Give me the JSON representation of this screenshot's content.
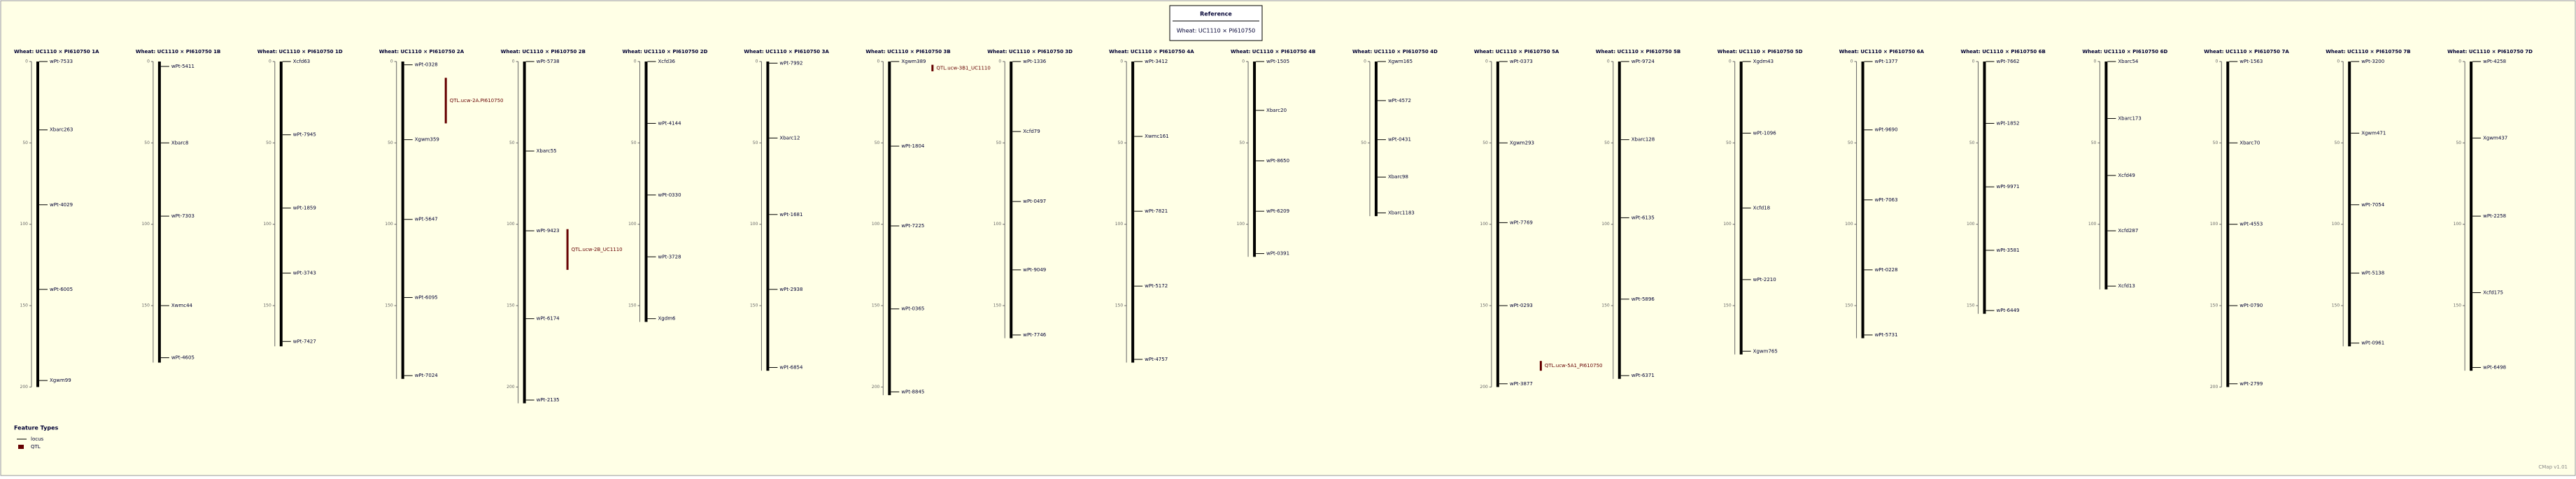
{
  "reference": {
    "title": "Reference",
    "map": "Wheat: UC1110 × PI610750"
  },
  "scale": {
    "ylim": [
      0,
      220
    ],
    "yticks": [
      0,
      50,
      100,
      150,
      200
    ]
  },
  "chromosomes": [
    {
      "title": "Wheat: UC1110 × PI610750 1A",
      "length": 200,
      "markers": [
        {
          "name": "wPt-7533",
          "pos": 0
        },
        {
          "name": "Xbarc263",
          "pos": 42
        },
        {
          "name": "wPt-4029",
          "pos": 88
        },
        {
          "name": "wPt-6005",
          "pos": 140
        },
        {
          "name": "Xgwm99",
          "pos": 196
        }
      ]
    },
    {
      "title": "Wheat: UC1110 × PI610750 1B",
      "length": 185,
      "markers": [
        {
          "name": "wPt-5411",
          "pos": 3
        },
        {
          "name": "Xbarc8",
          "pos": 50
        },
        {
          "name": "wPt-7303",
          "pos": 95
        },
        {
          "name": "Xwmc44",
          "pos": 150
        },
        {
          "name": "wPt-4605",
          "pos": 182
        }
      ]
    },
    {
      "title": "Wheat: UC1110 × PI610750 1D",
      "length": 175,
      "markers": [
        {
          "name": "Xcfd63",
          "pos": 0
        },
        {
          "name": "wPt-7945",
          "pos": 45
        },
        {
          "name": "wPt-1859",
          "pos": 90
        },
        {
          "name": "wPt-3743",
          "pos": 130
        },
        {
          "name": "wPt-7427",
          "pos": 172
        }
      ]
    },
    {
      "title": "Wheat: UC1110 × PI610750 2A",
      "length": 195,
      "markers": [
        {
          "name": "wPt-0328",
          "pos": 2
        },
        {
          "name": "Xgwm359",
          "pos": 48
        },
        {
          "name": "wPt-5647",
          "pos": 97
        },
        {
          "name": "wPt-6095",
          "pos": 145
        },
        {
          "name": "wPt-7024",
          "pos": 193
        }
      ]
    },
    {
      "title": "Wheat: UC1110 × PI610750 2B",
      "length": 210,
      "markers": [
        {
          "name": "wPt-5738",
          "pos": 0
        },
        {
          "name": "Xbarc55",
          "pos": 55
        },
        {
          "name": "wPt-9423",
          "pos": 104
        },
        {
          "name": "wPt-6174",
          "pos": 158
        },
        {
          "name": "wPt-2135",
          "pos": 208
        }
      ]
    },
    {
      "title": "Wheat: UC1110 × PI610750 2D",
      "length": 160,
      "markers": [
        {
          "name": "Xcfd36",
          "pos": 0
        },
        {
          "name": "wPt-4144",
          "pos": 38
        },
        {
          "name": "wPt-0330",
          "pos": 82
        },
        {
          "name": "wPt-3728",
          "pos": 120
        },
        {
          "name": "Xgdm6",
          "pos": 158
        }
      ]
    },
    {
      "title": "Wheat: UC1110 × PI610750 3A",
      "length": 190,
      "markers": [
        {
          "name": "wPt-7992",
          "pos": 1
        },
        {
          "name": "Xbarc12",
          "pos": 47
        },
        {
          "name": "wPt-1681",
          "pos": 94
        },
        {
          "name": "wPt-2938",
          "pos": 140
        },
        {
          "name": "wPt-6854",
          "pos": 188
        }
      ]
    },
    {
      "title": "Wheat: UC1110 × PI610750 3B",
      "length": 205,
      "markers": [
        {
          "name": "Xgwm389",
          "pos": 0
        },
        {
          "name": "wPt-1804",
          "pos": 52
        },
        {
          "name": "wPt-7225",
          "pos": 101
        },
        {
          "name": "wPt-0365",
          "pos": 152
        },
        {
          "name": "wPt-8845",
          "pos": 203
        }
      ]
    },
    {
      "title": "Wheat: UC1110 × PI610750 3D",
      "length": 170,
      "markers": [
        {
          "name": "wPt-1336",
          "pos": 0
        },
        {
          "name": "Xcfd79",
          "pos": 43
        },
        {
          "name": "wPt-0497",
          "pos": 86
        },
        {
          "name": "wPt-9049",
          "pos": 128
        },
        {
          "name": "wPt-7746",
          "pos": 168
        }
      ]
    },
    {
      "title": "Wheat: UC1110 × PI610750 4A",
      "length": 185,
      "markers": [
        {
          "name": "wPt-3412",
          "pos": 0
        },
        {
          "name": "Xwmc161",
          "pos": 46
        },
        {
          "name": "wPt-7821",
          "pos": 92
        },
        {
          "name": "wPt-5172",
          "pos": 138
        },
        {
          "name": "wPt-4757",
          "pos": 183
        }
      ]
    },
    {
      "title": "Wheat: UC1110 × PI610750 4B",
      "length": 120,
      "markers": [
        {
          "name": "wPt-1505",
          "pos": 0
        },
        {
          "name": "Xbarc20",
          "pos": 30
        },
        {
          "name": "wPt-8650",
          "pos": 61
        },
        {
          "name": "wPt-6209",
          "pos": 92
        },
        {
          "name": "wPt-0391",
          "pos": 118
        }
      ]
    },
    {
      "title": "Wheat: UC1110 × PI610750 4D",
      "length": 95,
      "markers": [
        {
          "name": "Xgwm165",
          "pos": 0
        },
        {
          "name": "wPt-4572",
          "pos": 24
        },
        {
          "name": "wPt-0431",
          "pos": 48
        },
        {
          "name": "Xbarc98",
          "pos": 71
        },
        {
          "name": "Xbarc1183",
          "pos": 93
        }
      ]
    },
    {
      "title": "Wheat: UC1110 × PI610750 5A",
      "length": 200,
      "markers": [
        {
          "name": "wPt-0373",
          "pos": 0
        },
        {
          "name": "Xgwm293",
          "pos": 50
        },
        {
          "name": "wPt-7769",
          "pos": 99
        },
        {
          "name": "wPt-0293",
          "pos": 150
        },
        {
          "name": "wPt-3877",
          "pos": 198
        }
      ]
    },
    {
      "title": "Wheat: UC1110 × PI610750 5B",
      "length": 195,
      "markers": [
        {
          "name": "wPt-9724",
          "pos": 0
        },
        {
          "name": "Xbarc128",
          "pos": 48
        },
        {
          "name": "wPt-6135",
          "pos": 96
        },
        {
          "name": "wPt-5896",
          "pos": 146
        },
        {
          "name": "wPt-6371",
          "pos": 193
        }
      ]
    },
    {
      "title": "Wheat: UC1110 × PI610750 5D",
      "length": 180,
      "markers": [
        {
          "name": "Xgdm43",
          "pos": 0
        },
        {
          "name": "wPt-1096",
          "pos": 44
        },
        {
          "name": "Xcfd18",
          "pos": 90
        },
        {
          "name": "wPt-2210",
          "pos": 134
        },
        {
          "name": "Xgwm765",
          "pos": 178
        }
      ]
    },
    {
      "title": "Wheat: UC1110 × PI610750 6A",
      "length": 170,
      "markers": [
        {
          "name": "wPt-1377",
          "pos": 0
        },
        {
          "name": "wPt-9690",
          "pos": 42
        },
        {
          "name": "wPt-7063",
          "pos": 85
        },
        {
          "name": "wPt-0228",
          "pos": 128
        },
        {
          "name": "wPt-5731",
          "pos": 168
        }
      ]
    },
    {
      "title": "Wheat: UC1110 × PI610750 6B",
      "length": 155,
      "markers": [
        {
          "name": "wPt-7662",
          "pos": 0
        },
        {
          "name": "wPt-1852",
          "pos": 38
        },
        {
          "name": "wPt-9971",
          "pos": 77
        },
        {
          "name": "wPt-3581",
          "pos": 116
        },
        {
          "name": "wPt-6449",
          "pos": 153
        }
      ]
    },
    {
      "title": "Wheat: UC1110 × PI610750 6D",
      "length": 140,
      "markers": [
        {
          "name": "Xbarc54",
          "pos": 0
        },
        {
          "name": "Xbarc173",
          "pos": 35
        },
        {
          "name": "Xcfd49",
          "pos": 70
        },
        {
          "name": "Xcfd287",
          "pos": 104
        },
        {
          "name": "Xcfd13",
          "pos": 138
        }
      ]
    },
    {
      "title": "Wheat: UC1110 × PI610750 7A",
      "length": 200,
      "markers": [
        {
          "name": "wPt-1563",
          "pos": 0
        },
        {
          "name": "Xbarc70",
          "pos": 50
        },
        {
          "name": "wPt-4553",
          "pos": 100
        },
        {
          "name": "wPt-0790",
          "pos": 150
        },
        {
          "name": "wPt-2799",
          "pos": 198
        }
      ]
    },
    {
      "title": "Wheat: UC1110 × PI610750 7B",
      "length": 175,
      "markers": [
        {
          "name": "wPt-3200",
          "pos": 0
        },
        {
          "name": "Xgwm471",
          "pos": 44
        },
        {
          "name": "wPt-7054",
          "pos": 88
        },
        {
          "name": "wPt-5138",
          "pos": 130
        },
        {
          "name": "wPt-0961",
          "pos": 173
        }
      ]
    },
    {
      "title": "Wheat: UC1110 × PI610750 7D",
      "length": 190,
      "markers": [
        {
          "name": "wPt-4258",
          "pos": 0
        },
        {
          "name": "Xgwm437",
          "pos": 47
        },
        {
          "name": "wPt-2258",
          "pos": 95
        },
        {
          "name": "Xcfd175",
          "pos": 142
        },
        {
          "name": "wPt-6498",
          "pos": 188
        }
      ]
    }
  ],
  "qtls": [
    {
      "chromosome": 3,
      "label": "QTL.ucw-2A.PI610750",
      "start": 10,
      "end": 38
    },
    {
      "chromosome": 4,
      "label": "QTL.ucw-2B_UC1110",
      "start": 103,
      "end": 128
    },
    {
      "chromosome": 7,
      "label": "QTL.ucw-3B1_UC1110",
      "start": 2,
      "end": 6
    },
    {
      "chromosome": 12,
      "label": "QTL.ucw-5A1_PI610750",
      "start": 184,
      "end": 190
    }
  ],
  "legend": {
    "title": "Feature Types",
    "items": [
      "locus",
      "QTL"
    ]
  },
  "footer": "CMap v1.01"
}
